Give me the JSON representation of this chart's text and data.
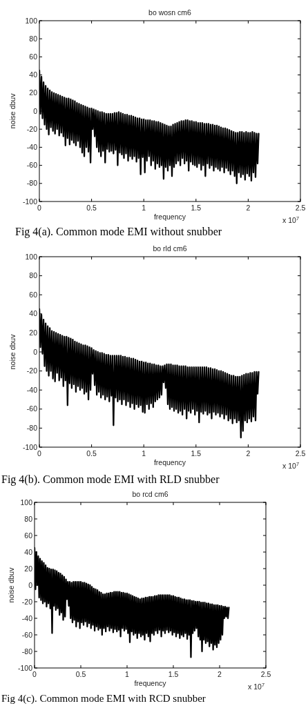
{
  "chart_data": [
    {
      "type": "line",
      "title": "bo wosn cm6",
      "xlabel": "frequency",
      "ylabel": "noise dbuv",
      "xlim": [
        0,
        2.5
      ],
      "xticks": [
        0,
        0.5,
        1,
        1.5,
        2,
        2.5
      ],
      "ylim": [
        -100,
        100
      ],
      "yticks": [
        -100,
        -80,
        -60,
        -40,
        -20,
        0,
        20,
        40,
        60,
        80,
        100
      ],
      "annotations": [
        "x 10$^{7}$",
        "Fig 4(a). Common mode EMI without snubber"
      ],
      "x": [
        0,
        0.01,
        0.02,
        0.03,
        0.04,
        0.05,
        0.06,
        0.07,
        0.08,
        0.09,
        0.1,
        0.11,
        0.12,
        0.13,
        0.14,
        0.15,
        0.16,
        0.17,
        0.18,
        0.19,
        0.2,
        0.21,
        0.22,
        0.23,
        0.24,
        0.25,
        0.26,
        0.27,
        0.28,
        0.29,
        0.3,
        0.31,
        0.32,
        0.33,
        0.34,
        0.35,
        0.36,
        0.37,
        0.38,
        0.39,
        0.4,
        0.41,
        0.42,
        0.43,
        0.44,
        0.45,
        0.46,
        0.47,
        0.48,
        0.49,
        0.5,
        0.51,
        0.52,
        0.53,
        0.54,
        0.55,
        0.56,
        0.57,
        0.58,
        0.59,
        0.6,
        0.61,
        0.62,
        0.63,
        0.64,
        0.65,
        0.66,
        0.67,
        0.68,
        0.69,
        0.7,
        0.71,
        0.72,
        0.73,
        0.74,
        0.75,
        0.76,
        0.77,
        0.78,
        0.79,
        0.8,
        0.81,
        0.82,
        0.83,
        0.84,
        0.85,
        0.86,
        0.87,
        0.88,
        0.89,
        0.9,
        0.91,
        0.92,
        0.93,
        0.94,
        0.95,
        0.96,
        0.97,
        0.98,
        0.99,
        1,
        1.01,
        1.02,
        1.03,
        1.04,
        1.05,
        1.06,
        1.07,
        1.08,
        1.09,
        1.1,
        1.11,
        1.12,
        1.13,
        1.14,
        1.15,
        1.16,
        1.17,
        1.18,
        1.19,
        1.2,
        1.21,
        1.22,
        1.23,
        1.24,
        1.25,
        1.26,
        1.27,
        1.28,
        1.29,
        1.3,
        1.31,
        1.32,
        1.33,
        1.34,
        1.35,
        1.36,
        1.37,
        1.38,
        1.39,
        1.4,
        1.41,
        1.42,
        1.43,
        1.44,
        1.45,
        1.46,
        1.47,
        1.48,
        1.49,
        1.5,
        1.51,
        1.52,
        1.53,
        1.54,
        1.55,
        1.56,
        1.57,
        1.58,
        1.59,
        1.6,
        1.61,
        1.62,
        1.63,
        1.64,
        1.65,
        1.66,
        1.67,
        1.68,
        1.69,
        1.7,
        1.71,
        1.72,
        1.73,
        1.74,
        1.75,
        1.76,
        1.77,
        1.78,
        1.79,
        1.8,
        1.81,
        1.82,
        1.83,
        1.84,
        1.85,
        1.86,
        1.87,
        1.88,
        1.89,
        1.9,
        1.91,
        1.92,
        1.93,
        1.94,
        1.95,
        1.96,
        1.97,
        1.98,
        1.99,
        2,
        2.01,
        2.02,
        2.03,
        2.04,
        2.05,
        2.06,
        2.07,
        2.08,
        2.09,
        2.1
      ],
      "series": [
        {
          "color": "#000000",
          "values": [
            45,
            -3,
            38,
            -8,
            32,
            -15,
            28,
            -20,
            25,
            -26,
            23,
            -18,
            21,
            -22,
            20,
            -25,
            19,
            -20,
            18,
            -27,
            17,
            -24,
            16,
            -28,
            15,
            -38,
            14,
            -30,
            14,
            -37,
            13,
            -32,
            12,
            -35,
            11,
            -38,
            9,
            -33,
            8,
            -40,
            7,
            -46,
            6,
            -50,
            5,
            -40,
            4,
            -45,
            3,
            -57,
            3,
            -20,
            2,
            -28,
            1,
            -40,
            0,
            -45,
            -1,
            -50,
            -1,
            -44,
            -2,
            -57,
            -3,
            -42,
            -3,
            -45,
            -3,
            -44,
            -3,
            -47,
            -2,
            -43,
            -2,
            -60,
            -1,
            -46,
            -2,
            -48,
            -3,
            -52,
            -4,
            -47,
            -4,
            -55,
            -5,
            -50,
            -5,
            -53,
            -6,
            -50,
            -7,
            -56,
            -8,
            -52,
            -8,
            -70,
            -9,
            -51,
            -9,
            -68,
            -10,
            -55,
            -10,
            -50,
            -10,
            -60,
            -11,
            -55,
            -11,
            -64,
            -12,
            -58,
            -12,
            -62,
            -13,
            -60,
            -14,
            -75,
            -15,
            -62,
            -16,
            -66,
            -17,
            -60,
            -17,
            -72,
            -15,
            -62,
            -14,
            -58,
            -13,
            -55,
            -12,
            -60,
            -11,
            -52,
            -11,
            -58,
            -10,
            -55,
            -10,
            -66,
            -11,
            -56,
            -11,
            -59,
            -12,
            -60,
            -12,
            -62,
            -13,
            -58,
            -13,
            -65,
            -13,
            -60,
            -14,
            -72,
            -14,
            -58,
            -14,
            -63,
            -15,
            -60,
            -15,
            -66,
            -16,
            -62,
            -16,
            -64,
            -17,
            -66,
            -18,
            -62,
            -19,
            -68,
            -19,
            -63,
            -20,
            -66,
            -21,
            -70,
            -22,
            -66,
            -23,
            -72,
            -24,
            -80,
            -24,
            -68,
            -23,
            -73,
            -23,
            -70,
            -24,
            -76,
            -23,
            -69,
            -24,
            -72,
            -24,
            -77,
            -23,
            -68,
            -24,
            -73,
            -25,
            -58,
            -25
          ]
        }
      ]
    },
    {
      "type": "line",
      "title": "bo rld cm6",
      "xlabel": "frequency",
      "ylabel": "noise dbuv",
      "xlim": [
        0,
        2.5
      ],
      "xticks": [
        0,
        0.5,
        1,
        1.5,
        2,
        2.5
      ],
      "ylim": [
        -100,
        100
      ],
      "yticks": [
        -100,
        -80,
        -60,
        -40,
        -20,
        0,
        20,
        40,
        60,
        80,
        100
      ],
      "annotations": [
        "x 10$^{7}$",
        "Fig 4(b). Common mode EMI with RLD snubber"
      ],
      "x": [
        0,
        0.01,
        0.02,
        0.03,
        0.04,
        0.05,
        0.06,
        0.07,
        0.08,
        0.09,
        0.1,
        0.11,
        0.12,
        0.13,
        0.14,
        0.15,
        0.16,
        0.17,
        0.18,
        0.19,
        0.2,
        0.21,
        0.22,
        0.23,
        0.24,
        0.25,
        0.26,
        0.27,
        0.28,
        0.29,
        0.3,
        0.31,
        0.32,
        0.33,
        0.34,
        0.35,
        0.36,
        0.37,
        0.38,
        0.39,
        0.4,
        0.41,
        0.42,
        0.43,
        0.44,
        0.45,
        0.46,
        0.47,
        0.48,
        0.49,
        0.5,
        0.51,
        0.52,
        0.53,
        0.54,
        0.55,
        0.56,
        0.57,
        0.58,
        0.59,
        0.6,
        0.61,
        0.62,
        0.63,
        0.64,
        0.65,
        0.66,
        0.67,
        0.68,
        0.69,
        0.7,
        0.71,
        0.72,
        0.73,
        0.74,
        0.75,
        0.76,
        0.77,
        0.78,
        0.79,
        0.8,
        0.81,
        0.82,
        0.83,
        0.84,
        0.85,
        0.86,
        0.87,
        0.88,
        0.89,
        0.9,
        0.91,
        0.92,
        0.93,
        0.94,
        0.95,
        0.96,
        0.97,
        0.98,
        0.99,
        1,
        1.01,
        1.02,
        1.03,
        1.04,
        1.05,
        1.06,
        1.07,
        1.08,
        1.09,
        1.1,
        1.11,
        1.12,
        1.13,
        1.14,
        1.15,
        1.16,
        1.17,
        1.18,
        1.19,
        1.2,
        1.21,
        1.22,
        1.23,
        1.24,
        1.25,
        1.26,
        1.27,
        1.28,
        1.29,
        1.3,
        1.31,
        1.32,
        1.33,
        1.34,
        1.35,
        1.36,
        1.37,
        1.38,
        1.39,
        1.4,
        1.41,
        1.42,
        1.43,
        1.44,
        1.45,
        1.46,
        1.47,
        1.48,
        1.49,
        1.5,
        1.51,
        1.52,
        1.53,
        1.54,
        1.55,
        1.56,
        1.57,
        1.58,
        1.59,
        1.6,
        1.61,
        1.62,
        1.63,
        1.64,
        1.65,
        1.66,
        1.67,
        1.68,
        1.69,
        1.7,
        1.71,
        1.72,
        1.73,
        1.74,
        1.75,
        1.76,
        1.77,
        1.78,
        1.79,
        1.8,
        1.81,
        1.82,
        1.83,
        1.84,
        1.85,
        1.86,
        1.87,
        1.88,
        1.89,
        1.9,
        1.91,
        1.92,
        1.93,
        1.94,
        1.95,
        1.96,
        1.97,
        1.98,
        1.99,
        2,
        2.01,
        2.02,
        2.03,
        2.04,
        2.05,
        2.06,
        2.07,
        2.08,
        2.09,
        2.1
      ],
      "series": [
        {
          "color": "#000000",
          "values": [
            45,
            5,
            39,
            -2,
            34,
            -15,
            30,
            -20,
            27,
            -25,
            25,
            -20,
            22,
            -28,
            21,
            -31,
            20,
            -22,
            19,
            -30,
            18,
            -27,
            17,
            -36,
            16,
            -30,
            16,
            -56,
            15,
            -33,
            14,
            -38,
            13,
            -34,
            11,
            -42,
            10,
            -36,
            9,
            -40,
            8,
            -38,
            7,
            -44,
            7,
            -42,
            6,
            -50,
            5,
            -40,
            4,
            -23,
            2,
            -35,
            1,
            -45,
            0,
            -42,
            -1,
            -48,
            -1,
            -45,
            -2,
            -50,
            -3,
            -47,
            -3,
            -52,
            -4,
            -46,
            -4,
            -77,
            -4,
            -48,
            -4,
            -52,
            -4,
            -50,
            -4,
            -55,
            -5,
            -50,
            -5,
            -56,
            -6,
            -52,
            -6,
            -58,
            -7,
            -54,
            -7,
            -60,
            -8,
            -55,
            -9,
            -58,
            -10,
            -56,
            -10,
            -63,
            -11,
            -64,
            -11,
            -55,
            -12,
            -60,
            -12,
            -54,
            -13,
            -58,
            -13,
            -52,
            -14,
            -50,
            -14,
            -48,
            -15,
            -45,
            -15,
            -32,
            -14,
            -38,
            -13,
            -55,
            -13,
            -60,
            -13,
            -58,
            -14,
            -62,
            -14,
            -60,
            -14,
            -64,
            -15,
            -62,
            -15,
            -66,
            -15,
            -60,
            -15,
            -70,
            -16,
            -62,
            -16,
            -64,
            -16,
            -60,
            -16,
            -66,
            -16,
            -62,
            -16,
            -74,
            -16,
            -63,
            -16,
            -65,
            -16,
            -62,
            -16,
            -66,
            -17,
            -64,
            -17,
            -70,
            -18,
            -63,
            -18,
            -66,
            -19,
            -64,
            -20,
            -68,
            -20,
            -65,
            -21,
            -70,
            -22,
            -66,
            -23,
            -72,
            -24,
            -70,
            -25,
            -75,
            -25,
            -70,
            -26,
            -74,
            -26,
            -72,
            -26,
            -90,
            -25,
            -83,
            -24,
            -72,
            -23,
            -74,
            -23,
            -70,
            -22,
            -73,
            -22,
            -68,
            -21,
            -72,
            -21,
            -44,
            -21
          ]
        }
      ]
    },
    {
      "type": "line",
      "title": "bo rcd cm6",
      "xlabel": "frequency",
      "ylabel": "noise dbuv",
      "xlim": [
        0,
        2.5
      ],
      "xticks": [
        0,
        0.5,
        1,
        1.5,
        2,
        2.5
      ],
      "ylim": [
        -100,
        100
      ],
      "yticks": [
        -100,
        -80,
        -60,
        -40,
        -20,
        0,
        20,
        40,
        60,
        80,
        100
      ],
      "annotations": [
        "x 10$^{7}$",
        "Fig 4(c). Common mode EMI with RCD snubber"
      ],
      "x": [
        0,
        0.01,
        0.02,
        0.03,
        0.04,
        0.05,
        0.06,
        0.07,
        0.08,
        0.09,
        0.1,
        0.11,
        0.12,
        0.13,
        0.14,
        0.15,
        0.16,
        0.17,
        0.18,
        0.19,
        0.2,
        0.21,
        0.22,
        0.23,
        0.24,
        0.25,
        0.26,
        0.27,
        0.28,
        0.29,
        0.3,
        0.31,
        0.32,
        0.33,
        0.34,
        0.35,
        0.36,
        0.37,
        0.38,
        0.39,
        0.4,
        0.41,
        0.42,
        0.43,
        0.44,
        0.45,
        0.46,
        0.47,
        0.48,
        0.49,
        0.5,
        0.51,
        0.52,
        0.53,
        0.54,
        0.55,
        0.56,
        0.57,
        0.58,
        0.59,
        0.6,
        0.61,
        0.62,
        0.63,
        0.64,
        0.65,
        0.66,
        0.67,
        0.68,
        0.69,
        0.7,
        0.71,
        0.72,
        0.73,
        0.74,
        0.75,
        0.76,
        0.77,
        0.78,
        0.79,
        0.8,
        0.81,
        0.82,
        0.83,
        0.84,
        0.85,
        0.86,
        0.87,
        0.88,
        0.89,
        0.9,
        0.91,
        0.92,
        0.93,
        0.94,
        0.95,
        0.96,
        0.97,
        0.98,
        0.99,
        1,
        1.01,
        1.02,
        1.03,
        1.04,
        1.05,
        1.06,
        1.07,
        1.08,
        1.09,
        1.1,
        1.11,
        1.12,
        1.13,
        1.14,
        1.15,
        1.16,
        1.17,
        1.18,
        1.19,
        1.2,
        1.21,
        1.22,
        1.23,
        1.24,
        1.25,
        1.26,
        1.27,
        1.28,
        1.29,
        1.3,
        1.31,
        1.32,
        1.33,
        1.34,
        1.35,
        1.36,
        1.37,
        1.38,
        1.39,
        1.4,
        1.41,
        1.42,
        1.43,
        1.44,
        1.45,
        1.46,
        1.47,
        1.48,
        1.49,
        1.5,
        1.51,
        1.52,
        1.53,
        1.54,
        1.55,
        1.56,
        1.57,
        1.58,
        1.59,
        1.6,
        1.61,
        1.62,
        1.63,
        1.64,
        1.65,
        1.66,
        1.67,
        1.68,
        1.69,
        1.7,
        1.71,
        1.72,
        1.73,
        1.74,
        1.75,
        1.76,
        1.77,
        1.78,
        1.79,
        1.8,
        1.81,
        1.82,
        1.83,
        1.84,
        1.85,
        1.86,
        1.87,
        1.88,
        1.89,
        1.9,
        1.91,
        1.92,
        1.93,
        1.94,
        1.95,
        1.96,
        1.97,
        1.98,
        1.99,
        2,
        2.01,
        2.02,
        2.03,
        2.04,
        2.05,
        2.06,
        2.07,
        2.08,
        2.09,
        2.1
      ],
      "series": [
        {
          "color": "#000000",
          "values": [
            45,
            -5,
            40,
            0,
            35,
            -15,
            32,
            -18,
            29,
            -22,
            27,
            -20,
            24,
            -26,
            21,
            -22,
            20,
            -28,
            19,
            -58,
            19,
            -25,
            18,
            -30,
            17,
            -28,
            15,
            -36,
            14,
            -33,
            12,
            -42,
            10,
            -38,
            7,
            -17,
            4,
            -25,
            4,
            -40,
            3,
            -45,
            4,
            -42,
            4,
            -50,
            4,
            -44,
            4,
            -52,
            4,
            -45,
            3,
            -48,
            3,
            -44,
            2,
            -50,
            1,
            -46,
            0,
            -52,
            -2,
            -48,
            -4,
            -55,
            -5,
            -50,
            -6,
            -54,
            -8,
            -52,
            -9,
            -60,
            -11,
            -52,
            -11,
            -56,
            -10,
            -50,
            -10,
            -55,
            -9,
            -52,
            -9,
            -57,
            -8,
            -53,
            -8,
            -56,
            -8,
            -54,
            -8,
            -62,
            -9,
            -52,
            -9,
            -55,
            -10,
            -53,
            -10,
            -58,
            -11,
            -69,
            -12,
            -56,
            -13,
            -60,
            -14,
            -58,
            -15,
            -64,
            -16,
            -58,
            -17,
            -62,
            -16,
            -60,
            -16,
            -66,
            -15,
            -58,
            -15,
            -62,
            -14,
            -68,
            -14,
            -58,
            -14,
            -60,
            -13,
            -55,
            -13,
            -58,
            -12,
            -54,
            -12,
            -62,
            -12,
            -55,
            -12,
            -58,
            -12,
            -54,
            -12,
            -57,
            -12,
            -55,
            -13,
            -60,
            -13,
            -57,
            -14,
            -62,
            -15,
            -58,
            -15,
            -64,
            -16,
            -60,
            -17,
            -62,
            -17,
            -58,
            -18,
            -65,
            -18,
            -60,
            -18,
            -87,
            -19,
            -58,
            -19,
            -55,
            -20,
            -52,
            -20,
            -62,
            -20,
            -66,
            -21,
            -80,
            -21,
            -66,
            -21,
            -70,
            -22,
            -68,
            -22,
            -74,
            -23,
            -70,
            -23,
            -78,
            -24,
            -72,
            -24,
            -75,
            -24,
            -70,
            -25,
            -66,
            -25,
            -60,
            -26,
            -40,
            -26,
            -38,
            -27,
            -40,
            -27
          ]
        }
      ]
    }
  ]
}
